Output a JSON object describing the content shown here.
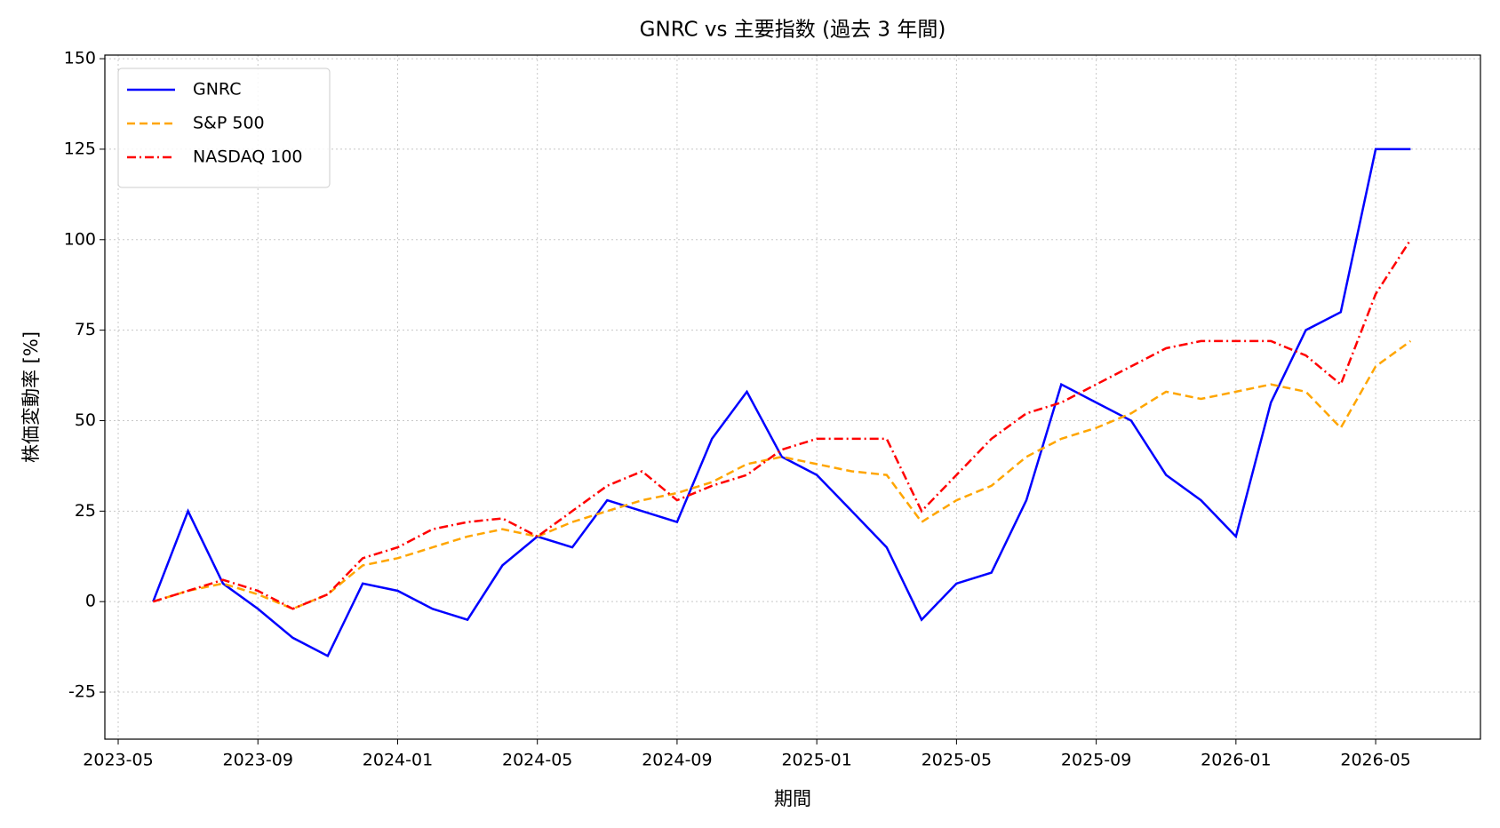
{
  "chart_data": {
    "type": "line",
    "title": "GNRC vs 主要指数 (過去 3 年間)",
    "x_label": "期間",
    "y_label": "株価変動率 [%]",
    "x": [
      "2023-06",
      "2023-07",
      "2023-08",
      "2023-09",
      "2023-10",
      "2023-11",
      "2023-12",
      "2024-01",
      "2024-02",
      "2024-03",
      "2024-04",
      "2024-05",
      "2024-06",
      "2024-07",
      "2024-08",
      "2024-09",
      "2024-10",
      "2024-11",
      "2024-12",
      "2025-01",
      "2025-02",
      "2025-03",
      "2025-04",
      "2025-05",
      "2025-06",
      "2025-07",
      "2025-08",
      "2025-09",
      "2025-10",
      "2025-11",
      "2025-12",
      "2026-01",
      "2026-02",
      "2026-03",
      "2026-04",
      "2026-05",
      "2026-06"
    ],
    "series": [
      {
        "name": "GNRC",
        "color": "#0000ff",
        "linestyle": "solid",
        "values": [
          0,
          25,
          5,
          -2,
          -10,
          -15,
          5,
          3,
          -2,
          -5,
          10,
          18,
          15,
          28,
          25,
          22,
          45,
          58,
          40,
          35,
          25,
          15,
          -5,
          5,
          8,
          28,
          60,
          55,
          50,
          35,
          28,
          18,
          55,
          75,
          80,
          125,
          125
        ]
      },
      {
        "name": "S&P 500",
        "color": "#ffa500",
        "linestyle": "dashed",
        "values": [
          0,
          3,
          5,
          2,
          -2,
          2,
          10,
          12,
          15,
          18,
          20,
          18,
          22,
          25,
          28,
          30,
          33,
          38,
          40,
          38,
          36,
          35,
          22,
          28,
          32,
          40,
          45,
          48,
          52,
          58,
          56,
          58,
          60,
          58,
          48,
          65,
          72
        ]
      },
      {
        "name": "NASDAQ 100",
        "color": "#ff0000",
        "linestyle": "dashdot",
        "values": [
          0,
          3,
          6,
          3,
          -2,
          2,
          12,
          15,
          20,
          22,
          23,
          18,
          25,
          32,
          36,
          28,
          32,
          35,
          42,
          45,
          45,
          45,
          25,
          35,
          45,
          52,
          55,
          60,
          65,
          70,
          72,
          72,
          72,
          68,
          60,
          85,
          100
        ]
      }
    ],
    "xlim": [
      "2023-05",
      "2026-08"
    ],
    "xticks": [
      "2023-05",
      "2023-09",
      "2024-01",
      "2024-05",
      "2024-09",
      "2025-01",
      "2025-05",
      "2025-09",
      "2026-01",
      "2026-05"
    ],
    "ylim": [
      -38,
      151
    ],
    "yticks": [
      -25,
      0,
      25,
      50,
      75,
      100,
      125,
      150
    ],
    "grid": true,
    "legend": "upper left"
  }
}
